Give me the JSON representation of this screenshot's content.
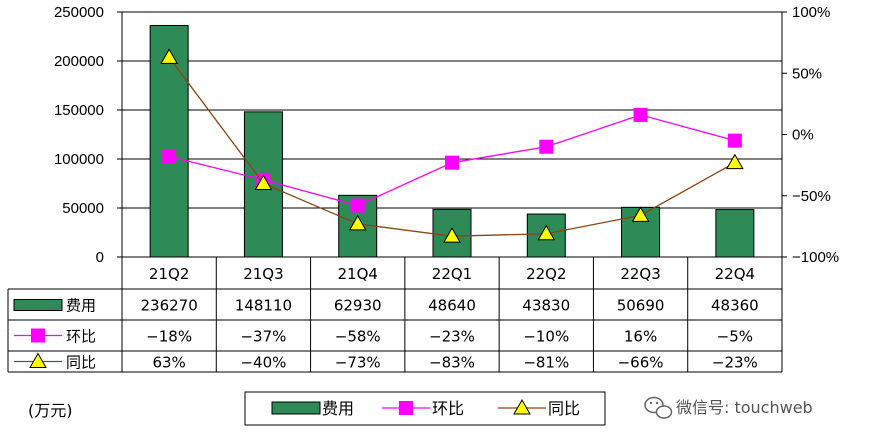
{
  "chart_data": {
    "type": "bar",
    "categories": [
      "21Q2",
      "21Q3",
      "21Q4",
      "22Q1",
      "22Q2",
      "22Q3",
      "22Q4"
    ],
    "y_left_ticks": [
      "250000",
      "200000",
      "150000",
      "100000",
      "50000",
      "0"
    ],
    "y_right_ticks": [
      "100%",
      "50%",
      "0%",
      "-50%",
      "-100%"
    ],
    "ylim_left": [
      0,
      250000
    ],
    "ylim_right": [
      -100,
      100
    ],
    "series": [
      {
        "name": "费用",
        "kind": "bar",
        "color": "#2E8B57",
        "axis": "left",
        "values": [
          236270,
          148110,
          62930,
          48640,
          43830,
          50690,
          48360
        ],
        "labels": [
          "236270",
          "148110",
          "62930",
          "48640",
          "43830",
          "50690",
          "48360"
        ]
      },
      {
        "name": "环比",
        "kind": "line",
        "marker": "square",
        "color": "#FF00FF",
        "axis": "right",
        "values": [
          -18,
          -37,
          -58,
          -23,
          -10,
          16,
          -5
        ],
        "labels": [
          "-18%",
          "-37%",
          "-58%",
          "-23%",
          "-10%",
          "16%",
          "-5%"
        ]
      },
      {
        "name": "同比",
        "kind": "line",
        "marker": "triangle",
        "color": "#8B4513",
        "marker_color": "#FFFF00",
        "axis": "right",
        "values": [
          63,
          -40,
          -73,
          -83,
          -81,
          -66,
          -23
        ],
        "labels": [
          "63%",
          "-40%",
          "-73%",
          "-83%",
          "-81%",
          "-66%",
          "-23%"
        ]
      }
    ],
    "unit_label": "(万元)",
    "legend": [
      "费用",
      "环比",
      "同比"
    ],
    "legend_position": "bottom",
    "grid": true
  },
  "watermark": "微信号: touchweb"
}
